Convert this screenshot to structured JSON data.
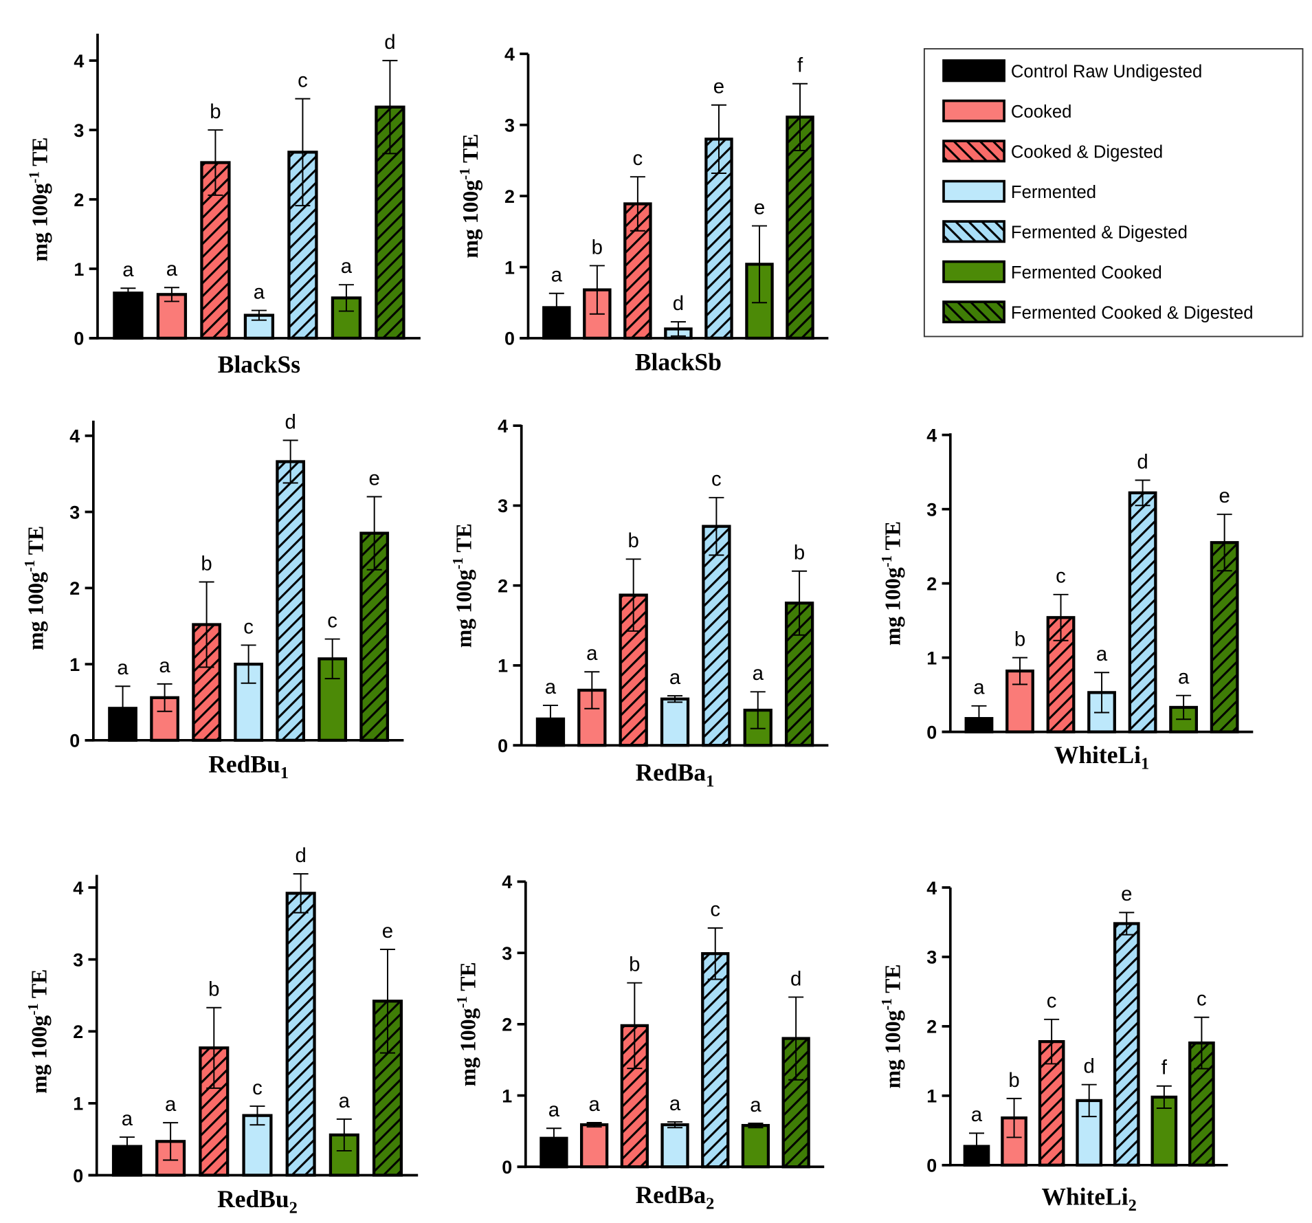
{
  "chart_data": {
    "type": "bar",
    "ylabel": "mg 100g",
    "ylabel_sup": "-1",
    "ylabel_suffix": " TE",
    "ylim": [
      0,
      4
    ],
    "yticks": [
      "0",
      "1",
      "2",
      "3",
      "4"
    ],
    "legend": {
      "placement": "top-right",
      "entries": [
        {
          "name": "Control Raw Undigested",
          "color": "#000000",
          "hatch": false
        },
        {
          "name": "Cooked",
          "color": "#fa7b78",
          "hatch": false
        },
        {
          "name": "Cooked & Digested",
          "color": "#fa6b68",
          "hatch": true
        },
        {
          "name": "Fermented",
          "color": "#bde8fb",
          "hatch": false
        },
        {
          "name": "Fermented & Digested",
          "color": "#a9def7",
          "hatch": true
        },
        {
          "name": "Fermented Cooked",
          "color": "#4c8a07",
          "hatch": false
        },
        {
          "name": "Fermented Cooked & Digested",
          "color": "#3f7d06",
          "hatch": true
        }
      ]
    },
    "panels": [
      {
        "title": "BlackSs",
        "sub": "",
        "values": [
          0.65,
          0.63,
          2.53,
          0.33,
          2.68,
          0.58,
          3.33
        ],
        "errors": [
          0.07,
          0.1,
          0.47,
          0.07,
          0.77,
          0.19,
          0.67
        ],
        "letters": [
          "a",
          "a",
          "b",
          "a",
          "c",
          "a",
          "d"
        ]
      },
      {
        "title": "BlackSb",
        "sub": "",
        "values": [
          0.43,
          0.68,
          1.89,
          0.13,
          2.8,
          1.04,
          3.11
        ],
        "errors": [
          0.2,
          0.34,
          0.38,
          0.1,
          0.48,
          0.54,
          0.47
        ],
        "letters": [
          "a",
          "b",
          "c",
          "d",
          "e",
          "e",
          "f"
        ]
      },
      {
        "title": "RedBu",
        "sub": "1",
        "values": [
          0.42,
          0.56,
          1.52,
          1.0,
          3.66,
          1.07,
          2.72
        ],
        "errors": [
          0.29,
          0.18,
          0.56,
          0.25,
          0.28,
          0.26,
          0.48
        ],
        "letters": [
          "a",
          "a",
          "b",
          "c",
          "d",
          "c",
          "e"
        ]
      },
      {
        "title": "RedBa",
        "sub": "1",
        "values": [
          0.33,
          0.69,
          1.88,
          0.58,
          2.74,
          0.44,
          1.78
        ],
        "errors": [
          0.17,
          0.23,
          0.45,
          0.04,
          0.36,
          0.23,
          0.4
        ],
        "letters": [
          "a",
          "a",
          "b",
          "a",
          "c",
          "a",
          "b"
        ]
      },
      {
        "title": "WhiteLi",
        "sub": "1",
        "values": [
          0.18,
          0.82,
          1.54,
          0.53,
          3.22,
          0.33,
          2.55
        ],
        "errors": [
          0.17,
          0.18,
          0.31,
          0.27,
          0.17,
          0.16,
          0.38
        ],
        "letters": [
          "a",
          "b",
          "c",
          "a",
          "d",
          "a",
          "e"
        ]
      },
      {
        "title": "RedBu",
        "sub": "2",
        "values": [
          0.4,
          0.47,
          1.77,
          0.83,
          3.92,
          0.56,
          2.42
        ],
        "errors": [
          0.13,
          0.26,
          0.56,
          0.13,
          0.27,
          0.22,
          0.72
        ],
        "letters": [
          "a",
          "a",
          "b",
          "c",
          "d",
          "a",
          "e"
        ]
      },
      {
        "title": "RedBa",
        "sub": "2",
        "values": [
          0.4,
          0.59,
          1.98,
          0.59,
          2.99,
          0.58,
          1.8
        ],
        "errors": [
          0.14,
          0.03,
          0.6,
          0.04,
          0.36,
          0.03,
          0.58
        ],
        "letters": [
          "a",
          "a",
          "b",
          "a",
          "c",
          "a",
          "d"
        ]
      },
      {
        "title": "WhiteLi",
        "sub": "2",
        "values": [
          0.27,
          0.68,
          1.78,
          0.93,
          3.48,
          0.98,
          1.76
        ],
        "errors": [
          0.19,
          0.28,
          0.32,
          0.23,
          0.16,
          0.16,
          0.37
        ],
        "letters": [
          "a",
          "b",
          "c",
          "d",
          "e",
          "f",
          "c"
        ]
      }
    ]
  }
}
